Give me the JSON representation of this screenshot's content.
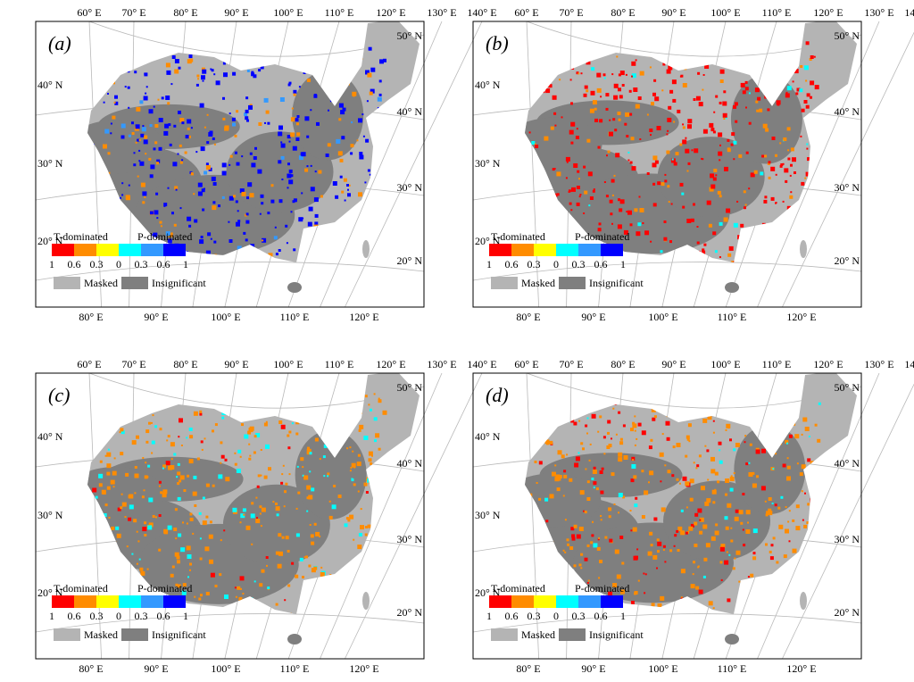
{
  "colors": {
    "masked": "#b4b4b4",
    "insignificant": "#7f7f7f",
    "scale": [
      "#ff0000",
      "#ff8c00",
      "#ffff00",
      "#00ffff",
      "#3399ff",
      "#0000ff"
    ]
  },
  "legend": {
    "t_dominated": "T-dominated",
    "p_dominated": "P-dominated",
    "scale_labels": [
      "1",
      "0.6",
      "0.3",
      "0",
      "0.3",
      "0.6",
      "1"
    ],
    "masked": "Masked",
    "insignificant": "Insignificant"
  },
  "graticule": {
    "top_longitudes": [
      "60° E",
      "70° E",
      "80° E",
      "90° E",
      "100° E",
      "110° E",
      "120° E",
      "130° E",
      "140° E"
    ],
    "bottom_longitudes": [
      "80° E",
      "90° E",
      "100° E",
      "110° E",
      "120° E"
    ],
    "left_latitudes": [
      "40° N",
      "30° N",
      "20° N"
    ],
    "right_latitudes": [
      "50° N",
      "40° N",
      "30° N",
      "20° N"
    ]
  },
  "panels": [
    {
      "label": "(a)",
      "dominant_colors": [
        "#0000ff",
        "#ff8c00",
        "#3399ff"
      ]
    },
    {
      "label": "(b)",
      "dominant_colors": [
        "#ff0000",
        "#ff8c00",
        "#00ffff"
      ]
    },
    {
      "label": "(c)",
      "dominant_colors": [
        "#ff8c00",
        "#00ffff",
        "#ff0000"
      ]
    },
    {
      "label": "(d)",
      "dominant_colors": [
        "#ff8c00",
        "#ff0000",
        "#00ffff"
      ]
    }
  ]
}
